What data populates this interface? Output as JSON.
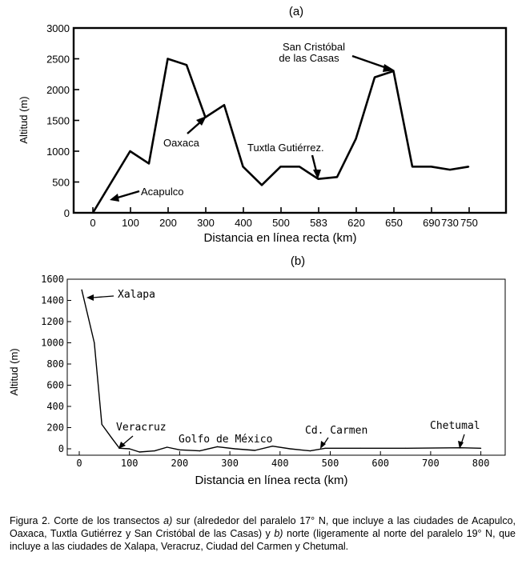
{
  "chart_data": [
    {
      "type": "line",
      "panel_label": "(a)",
      "xlabel": "Distancia en línea recta (km)",
      "ylabel": "Altitud (m)",
      "ylim": [
        0,
        3000
      ],
      "yticks": [
        0,
        500,
        1000,
        1500,
        2000,
        2500,
        3000
      ],
      "xtick_labels": [
        "0",
        "100",
        "200",
        "300",
        "400",
        "500",
        "583",
        "620",
        "650",
        "690",
        "730",
        "750"
      ],
      "grid": false,
      "series": [
        {
          "points": [
            {
              "x": 0,
              "y": 0
            },
            {
              "x": 100,
              "y": 1000
            },
            {
              "x": 150,
              "y": 800
            },
            {
              "x": 200,
              "y": 2500
            },
            {
              "x": 250,
              "y": 2400
            },
            {
              "x": 300,
              "y": 1550
            },
            {
              "x": 350,
              "y": 1750
            },
            {
              "x": 400,
              "y": 750
            },
            {
              "x": 450,
              "y": 450
            },
            {
              "x": 500,
              "y": 750
            },
            {
              "x": 550,
              "y": 750
            },
            {
              "x": 583,
              "y": 550
            },
            {
              "x": 620,
              "y": 580
            },
            {
              "x": 650,
              "y": 1200
            },
            {
              "x": 690,
              "y": 2200
            },
            {
              "x": 730,
              "y": 2300
            },
            {
              "x": 750,
              "y": 750
            },
            {
              "x": 750.5,
              "y": 750
            },
            {
              "x": 751,
              "y": 700
            },
            {
              "x": 751.5,
              "y": 750
            }
          ]
        }
      ],
      "annotations": [
        {
          "text": "Acapulco",
          "x": 50,
          "y": 200
        },
        {
          "text": "Oaxaca",
          "x": 300,
          "y": 1550
        },
        {
          "text": "Tuxtla Gutiérrez.",
          "x": 583,
          "y": 550
        },
        {
          "text_lines": [
            "San Cristóbal",
            "de las Casas"
          ],
          "x": 730,
          "y": 2300
        }
      ]
    },
    {
      "type": "line",
      "panel_label": "(b)",
      "xlabel": "Distancia en línea recta (km)",
      "ylabel": "Altitud (m)",
      "ylim": [
        -50,
        1600
      ],
      "xlim": [
        -20,
        820
      ],
      "yticks": [
        0,
        200,
        400,
        600,
        800,
        1000,
        1200,
        1400,
        1600
      ],
      "xticks": [
        0,
        100,
        200,
        300,
        400,
        500,
        600,
        700,
        800
      ],
      "grid": false,
      "series": [
        {
          "points": [
            {
              "x": 5,
              "y": 1500
            },
            {
              "x": 15,
              "y": 1300
            },
            {
              "x": 30,
              "y": 1000
            },
            {
              "x": 45,
              "y": 230
            },
            {
              "x": 65,
              "y": 100
            },
            {
              "x": 80,
              "y": 5
            },
            {
              "x": 100,
              "y": 0
            },
            {
              "x": 120,
              "y": -30
            },
            {
              "x": 150,
              "y": -20
            },
            {
              "x": 175,
              "y": 15
            },
            {
              "x": 200,
              "y": -10
            },
            {
              "x": 240,
              "y": -20
            },
            {
              "x": 275,
              "y": 20
            },
            {
              "x": 310,
              "y": 0
            },
            {
              "x": 350,
              "y": -15
            },
            {
              "x": 385,
              "y": 25
            },
            {
              "x": 420,
              "y": 0
            },
            {
              "x": 460,
              "y": -20
            },
            {
              "x": 490,
              "y": 5
            },
            {
              "x": 560,
              "y": 5
            },
            {
              "x": 650,
              "y": 5
            },
            {
              "x": 760,
              "y": 10
            },
            {
              "x": 800,
              "y": 5
            }
          ]
        }
      ],
      "annotations": [
        {
          "text": "Xalapa",
          "x": 15,
          "y": 1430
        },
        {
          "text": "Veracruz",
          "x": 80,
          "y": 5
        },
        {
          "text": "Golfo de México",
          "x": 300,
          "y": 40
        },
        {
          "text": "Cd. Carmen",
          "x": 480,
          "y": 20
        },
        {
          "text": "Chetumal",
          "x": 760,
          "y": 20
        }
      ]
    }
  ],
  "caption": {
    "prefix": "Figura 2. Corte de los transectos ",
    "a_label": "a)",
    "middle": " sur (alrededor del paralelo 17° N, que incluye a las ciudades de Acapulco, Oaxaca, Tuxtla Gutiérrez y San Cristóbal de las Casas) y ",
    "b_label": "b)",
    "suffix": " norte (ligeramente al norte del paralelo 19° N, que incluye a las ciudades de Xalapa, Veracruz, Ciudad del Carmen y Chetumal."
  }
}
